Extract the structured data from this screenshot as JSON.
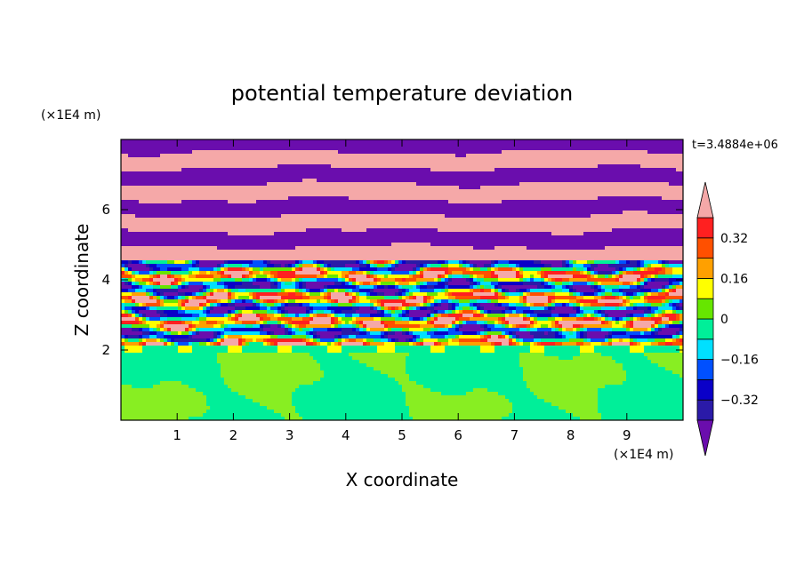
{
  "chart_data": {
    "type": "heatmap",
    "title": "potential temperature deviation",
    "xlabel": "X coordinate",
    "ylabel": "Z coordinate",
    "x_unit": "(×1E4 m)",
    "y_unit": "(×1E4 m)",
    "time_label": "t=3.4884e+06",
    "xlim": [
      0,
      10
    ],
    "ylim": [
      0,
      8
    ],
    "x_ticks": [
      1,
      2,
      3,
      4,
      5,
      6,
      7,
      8,
      9
    ],
    "y_ticks": [
      2,
      4,
      6
    ],
    "grid": false,
    "colorbar": {
      "placement": "right",
      "tick_labels": [
        "0.32",
        "0.16",
        "0",
        "−0.16",
        "−0.32"
      ],
      "tick_values": [
        0.32,
        0.16,
        0,
        -0.16,
        -0.32
      ],
      "levels": [
        -0.4,
        -0.32,
        -0.24,
        -0.16,
        -0.08,
        0,
        0.08,
        0.16,
        0.24,
        0.32,
        0.4
      ],
      "colors": [
        "#6a0dad",
        "#2a1aa8",
        "#0a00c8",
        "#0050ff",
        "#00e0ff",
        "#00ef99",
        "#66e600",
        "#ffff00",
        "#ffa000",
        "#ff5000",
        "#ff2020",
        "#f5a8a8"
      ],
      "extend": "both"
    },
    "regions": [
      {
        "z_range": [
          0,
          2.1
        ],
        "description_values": [
          0,
          0.08
        ],
        "colors": [
          "#00ef99",
          "#88ee22"
        ]
      },
      {
        "z_range": [
          2.1,
          4.6
        ],
        "description_values": [
          -0.4,
          0.4
        ]
      },
      {
        "z_range": [
          4.6,
          8
        ],
        "description_values": [
          -0.4,
          0.4
        ],
        "colors": [
          "#6a0dad",
          "#f5a8a8"
        ]
      }
    ]
  }
}
